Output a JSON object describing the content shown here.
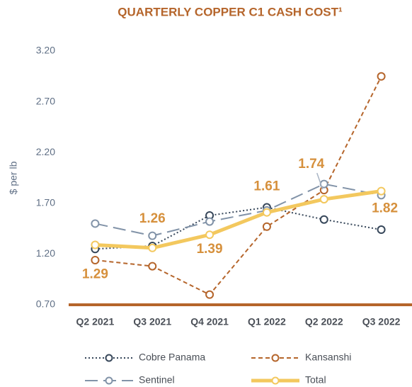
{
  "chart_data": {
    "type": "line",
    "title": "QUARTERLY COPPER C1 CASH COST¹",
    "y_label": "$ per lb",
    "categories": [
      "Q2 2021",
      "Q3 2021",
      "Q4 2021",
      "Q1 2022",
      "Q2 2022",
      "Q3 2022"
    ],
    "series": [
      {
        "name": "Cobre Panama",
        "color": "#37475a",
        "style": "dotted",
        "values": [
          1.25,
          1.28,
          1.58,
          1.66,
          1.54,
          1.44
        ]
      },
      {
        "name": "Kansanshi",
        "color": "#b5652b",
        "style": "dashed",
        "values": [
          1.14,
          1.08,
          0.8,
          1.47,
          1.83,
          2.95
        ]
      },
      {
        "name": "Sentinel",
        "color": "#8293a8",
        "style": "longdash",
        "values": [
          1.5,
          1.38,
          1.52,
          1.63,
          1.89,
          1.78
        ]
      },
      {
        "name": "Total",
        "color": "#f3c85e",
        "style": "thick",
        "values": [
          1.29,
          1.26,
          1.39,
          1.61,
          1.74,
          1.82
        ]
      }
    ],
    "ylim": [
      0.7,
      3.2
    ],
    "yticks": [
      {
        "value": 0.7,
        "label": "0.70"
      },
      {
        "value": 1.2,
        "label": "1.20"
      },
      {
        "value": 1.7,
        "label": "1.70"
      },
      {
        "value": 2.2,
        "label": "2.20"
      },
      {
        "value": 2.7,
        "label": "2.70"
      },
      {
        "value": 3.2,
        "label": "3.20"
      }
    ],
    "grid": false,
    "legend": "bottom"
  }
}
